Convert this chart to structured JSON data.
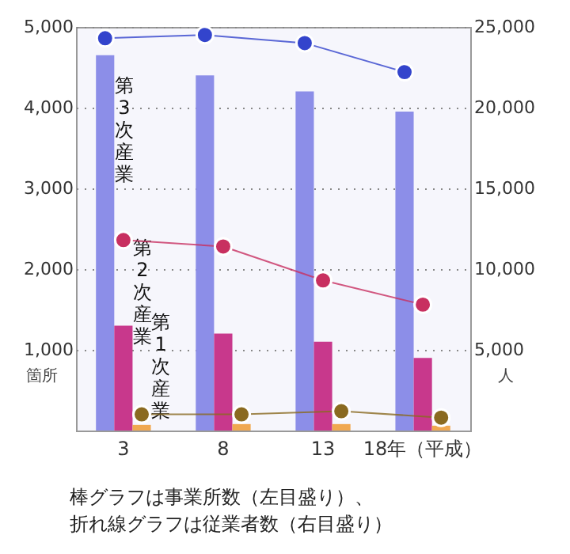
{
  "chart_data": {
    "type": "bar",
    "categories": [
      "3",
      "8",
      "13",
      "18年（平成）"
    ],
    "ylabel": "箇所",
    "y2label": "人",
    "ylim": [
      0,
      5000
    ],
    "yticks": [
      {
        "value": 1000,
        "label": "1,000"
      },
      {
        "value": 2000,
        "label": "2,000"
      },
      {
        "value": 3000,
        "label": "3,000"
      },
      {
        "value": 4000,
        "label": "4,000"
      },
      {
        "value": 5000,
        "label": "5,000"
      }
    ],
    "y2lim": [
      0,
      25000
    ],
    "y2ticks": [
      {
        "value": 5000,
        "label": "5,000"
      },
      {
        "value": 10000,
        "label": "10,000"
      },
      {
        "value": 15000,
        "label": "15,000"
      },
      {
        "value": 20000,
        "label": "20,000"
      },
      {
        "value": 25000,
        "label": "25,000"
      }
    ],
    "grid": "y",
    "marker": "circle",
    "line_style": "solid",
    "series": [
      {
        "name": "第3次産業",
        "color": "#8c8ee8",
        "values": [
          4650,
          4400,
          4200,
          3950
        ]
      },
      {
        "name": "第2次産業",
        "color": "#c8388c",
        "values": [
          1300,
          1200,
          1100,
          900
        ]
      },
      {
        "name": "第1次産業",
        "color": "#f0a850",
        "values": [
          70,
          80,
          80,
          60
        ]
      },
      {
        "type": "line",
        "axis": "y2",
        "color": "#3344cc",
        "values": [
          24300,
          24500,
          24000,
          22200
        ]
      },
      {
        "type": "line",
        "axis": "y2",
        "color": "#c83060",
        "values": [
          11800,
          11400,
          9300,
          7800
        ]
      },
      {
        "type": "line",
        "axis": "y2",
        "color": "#8a6a20",
        "values": [
          1000,
          1000,
          1200,
          800
        ]
      }
    ],
    "annotations": [
      "棒グラフは事業所数（左目盛り）、",
      "折れ線グラフは従業者数（右目盛り）"
    ]
  }
}
